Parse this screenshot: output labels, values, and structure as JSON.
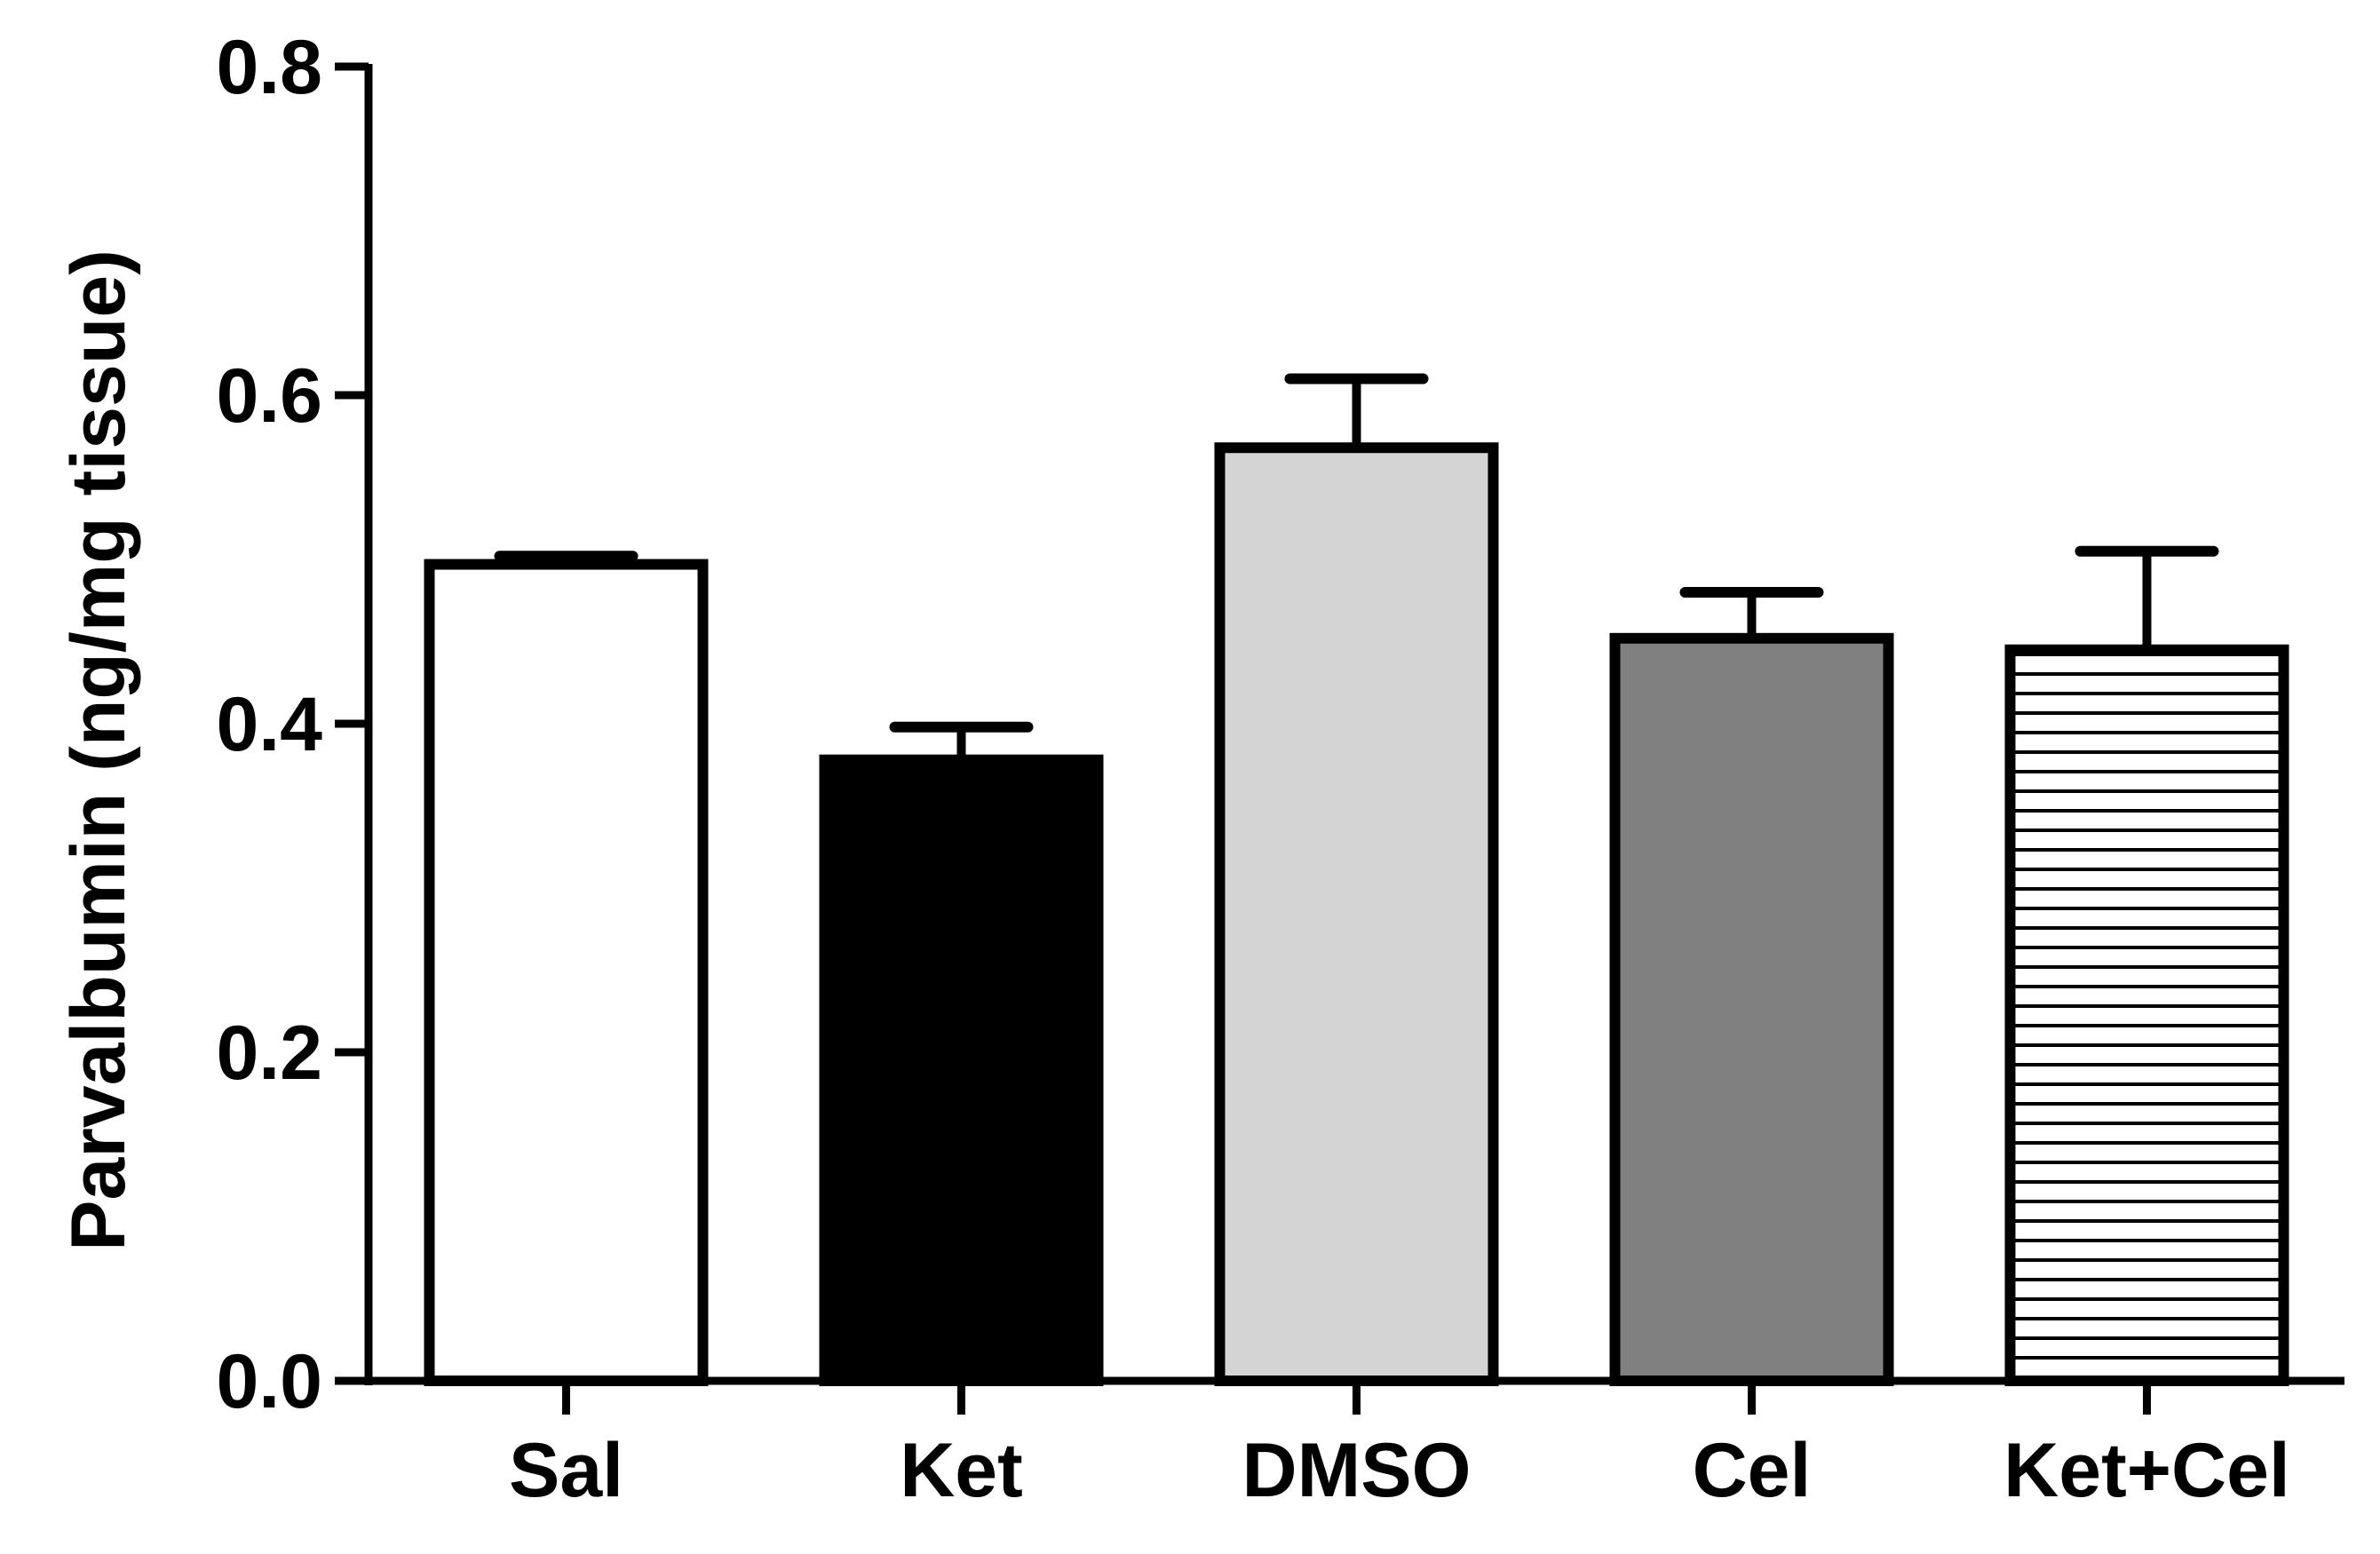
{
  "chart_data": {
    "type": "bar",
    "title": "",
    "xlabel": "",
    "ylabel": "Parvalbumin (ng/mg tissue)",
    "ylim": [
      0,
      0.8
    ],
    "yticks": [
      "0.0",
      "0.2",
      "0.4",
      "0.6",
      "0.8"
    ],
    "grid": false,
    "legend": "none",
    "categories": [
      "Sal",
      "Ket",
      "DMSO",
      "Cel",
      "Ket+Cel"
    ],
    "values": [
      0.497,
      0.378,
      0.568,
      0.452,
      0.445
    ],
    "error_upper": [
      0.005,
      0.02,
      0.042,
      0.028,
      0.06
    ],
    "bar_fills": [
      "#ffffff",
      "#000000",
      "#d4d4d4",
      "#808080",
      "horizontal-stripes"
    ]
  }
}
